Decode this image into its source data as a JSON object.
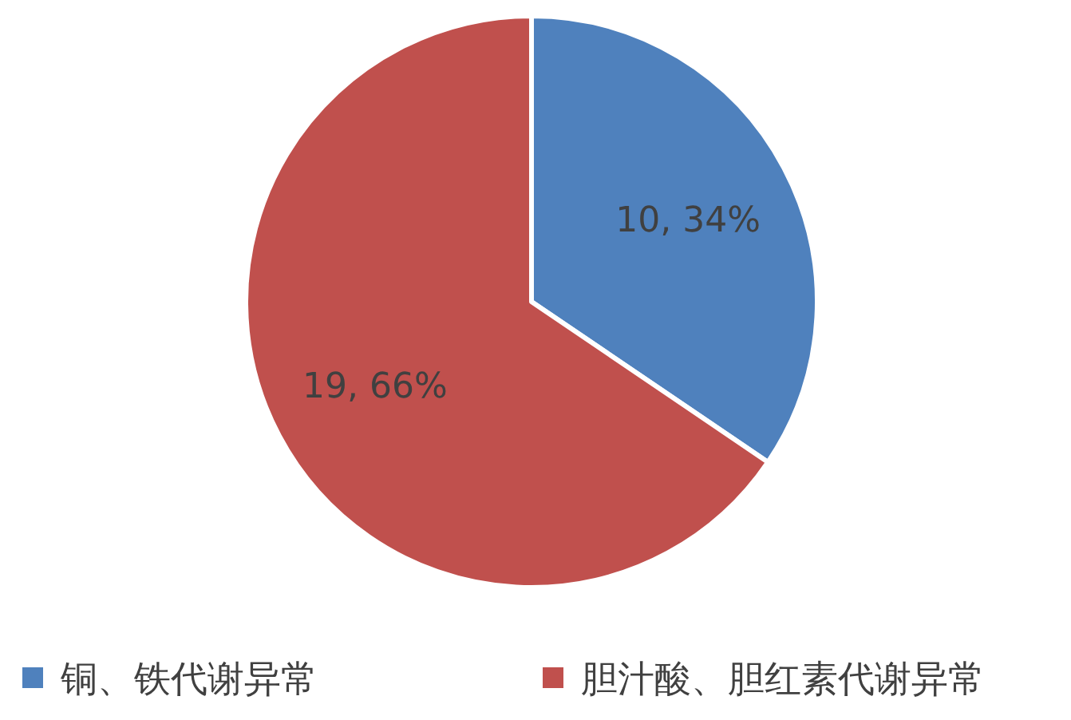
{
  "chart_data": {
    "type": "pie",
    "categories": [
      "铜、铁代谢异常",
      "胆汁酸、胆红素代谢异常"
    ],
    "values": [
      10,
      19
    ],
    "colors": [
      "#4f81bd",
      "#c0504d"
    ],
    "value_labels": [
      "10, 34%",
      "19, 66%"
    ],
    "legend": "bottom"
  }
}
